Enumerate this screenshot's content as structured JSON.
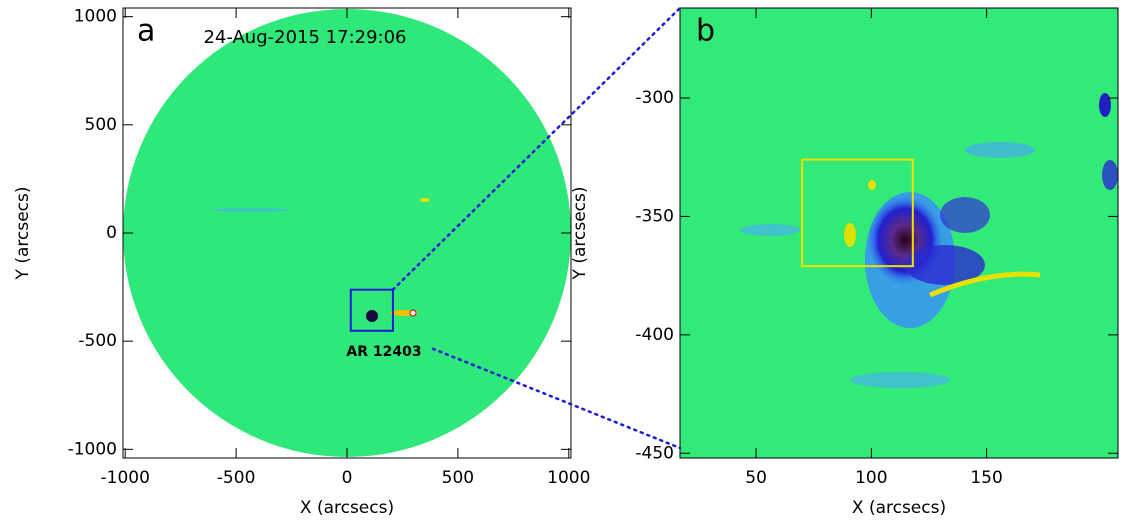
{
  "chart_data": [
    {
      "type": "image",
      "panel": "a",
      "title": "24-Aug-2015 17:29:06",
      "annotation": "AR 12403",
      "x_label": "X (arcsecs)",
      "y_label": "Y (arcsecs)",
      "xlim": [
        -1010,
        1010
      ],
      "ylim": [
        -1040,
        1040
      ],
      "xticks": [
        -1000,
        -500,
        0,
        500,
        1000
      ],
      "yticks": [
        -1000,
        -500,
        0,
        500,
        1000
      ],
      "zoom_box_color": "#1c1cd8"
    },
    {
      "type": "image",
      "panel": "b",
      "x_label": "X (arcsecs)",
      "y_label": "Y (arcsecs)",
      "xlim": [
        17,
        207
      ],
      "ylim": [
        -452,
        -262
      ],
      "xticks": [
        50,
        100,
        150
      ],
      "yticks": [
        -450,
        -400,
        -350,
        -300
      ],
      "boxes": [
        {
          "x": [
            70,
            118
          ],
          "y": [
            -371,
            -326
          ],
          "color": "#f0e000"
        }
      ]
    }
  ]
}
